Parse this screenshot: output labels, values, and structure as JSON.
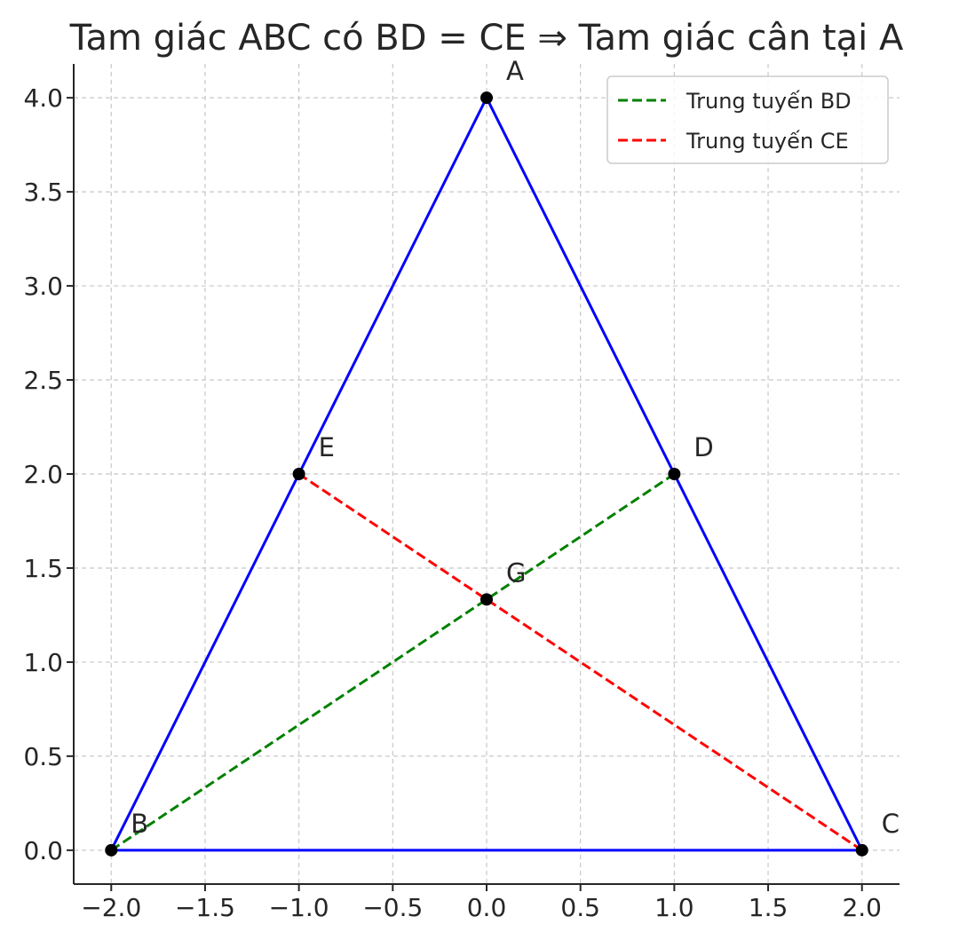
{
  "chart_data": {
    "type": "line",
    "title": "Tam giác ABC có BD = CE ⇒ Tam giác cân tại A",
    "xlabel": "",
    "ylabel": "",
    "xlim": [
      -2.2,
      2.2
    ],
    "ylim": [
      -0.18,
      4.18
    ],
    "x_ticks": [
      -2.0,
      -1.5,
      -1.0,
      -0.5,
      0.0,
      0.5,
      1.0,
      1.5,
      2.0
    ],
    "y_ticks": [
      0.0,
      0.5,
      1.0,
      1.5,
      2.0,
      2.5,
      3.0,
      3.5,
      4.0
    ],
    "x_tick_labels": [
      "−2.0",
      "−1.5",
      "−1.0",
      "−0.5",
      "0.0",
      "0.5",
      "1.0",
      "1.5",
      "2.0"
    ],
    "y_tick_labels": [
      "0.0",
      "0.5",
      "1.0",
      "1.5",
      "2.0",
      "2.5",
      "3.0",
      "3.5",
      "4.0"
    ],
    "grid": true,
    "legend_position": "top-right",
    "points": [
      {
        "label": "A",
        "x": 0,
        "y": 4
      },
      {
        "label": "B",
        "x": -2,
        "y": 0
      },
      {
        "label": "C",
        "x": 2,
        "y": 0
      },
      {
        "label": "D",
        "x": 1,
        "y": 2
      },
      {
        "label": "E",
        "x": -1,
        "y": 2
      },
      {
        "label": "G",
        "x": 0,
        "y": 1.333
      }
    ],
    "series": [
      {
        "style": "solid",
        "color": "#0000ff",
        "x": [
          -2,
          2,
          0,
          -2
        ],
        "y": [
          0,
          0,
          4,
          0
        ]
      },
      {
        "name": "Trung tuyến BD",
        "style": "dashed",
        "color": "#008000",
        "x": [
          -2,
          1
        ],
        "y": [
          0,
          2
        ]
      },
      {
        "name": "Trung tuyến CE",
        "style": "dashed",
        "color": "#ff0000",
        "x": [
          2,
          -1
        ],
        "y": [
          0,
          2
        ]
      }
    ]
  }
}
